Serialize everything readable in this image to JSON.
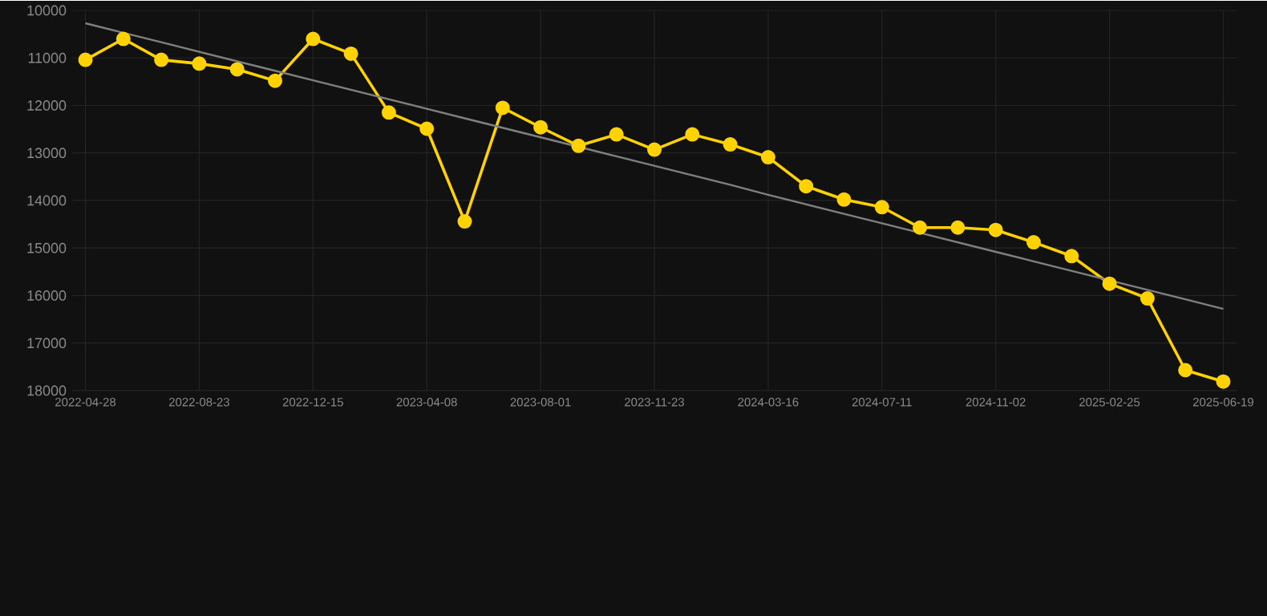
{
  "chart_data": {
    "type": "line",
    "categories": [
      "2022-04-28",
      null,
      null,
      "2022-08-23",
      null,
      null,
      "2022-12-15",
      null,
      null,
      "2023-04-08",
      null,
      null,
      "2023-08-01",
      null,
      null,
      "2023-11-23",
      null,
      null,
      "2024-03-16",
      null,
      null,
      "2024-07-11",
      null,
      null,
      "2024-11-02",
      null,
      null,
      "2025-02-25",
      null,
      null,
      "2025-06-19"
    ],
    "series": [
      {
        "color": "#ffd200",
        "marker": "circle",
        "values": [
          11040,
          10600,
          11040,
          11120,
          11240,
          11480,
          10600,
          10910,
          12150,
          12490,
          14440,
          12050,
          12460,
          12850,
          12610,
          12930,
          12610,
          12820,
          13090,
          13700,
          13980,
          14140,
          14570,
          14570,
          14620,
          14880,
          15170,
          15750,
          16060,
          17570,
          17810
        ]
      },
      {
        "type": "line",
        "color": "#808080",
        "marker": "none",
        "values": [
          10270,
          10470,
          10670,
          10870,
          11070,
          11270,
          11470,
          11670,
          11870,
          12070,
          12270,
          12470,
          12670,
          12870,
          13070,
          13270,
          13470,
          13670,
          13880,
          14080,
          14280,
          14480,
          14680,
          14880,
          15080,
          15280,
          15480,
          15680,
          15880,
          16080,
          16280
        ]
      }
    ],
    "ylim": [
      18000,
      10000
    ],
    "yticks": [
      10000,
      11000,
      12000,
      13000,
      14000,
      15000,
      16000,
      17000,
      18000
    ],
    "grid": true
  }
}
